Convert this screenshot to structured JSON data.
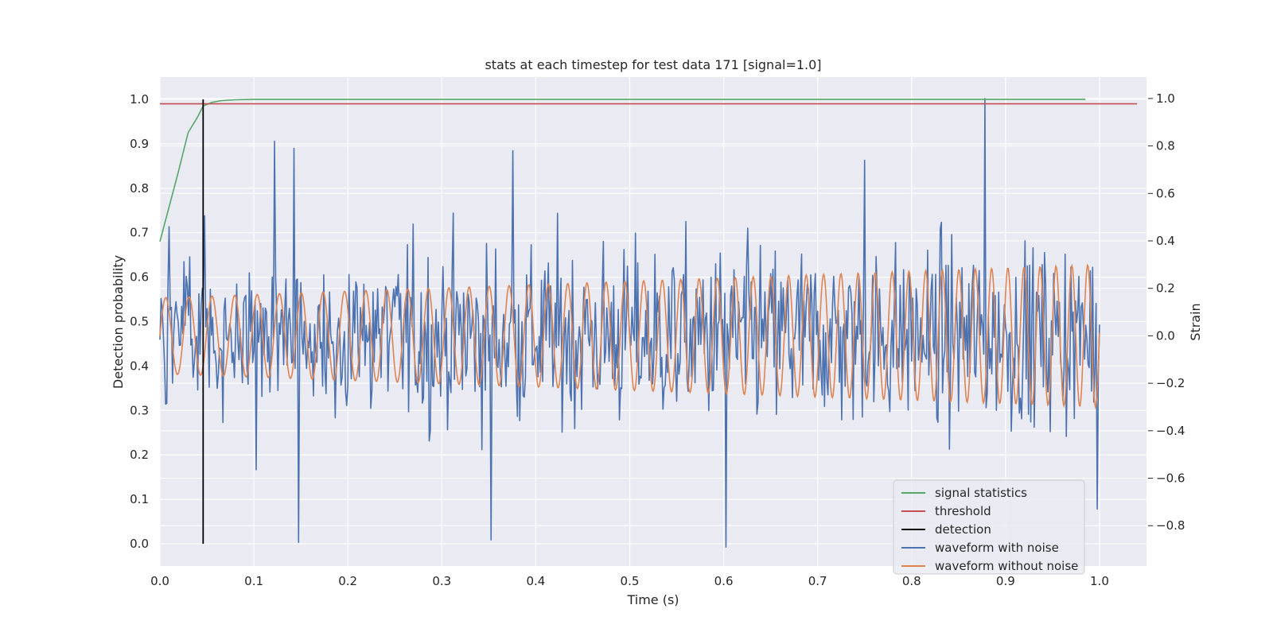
{
  "chart_data": {
    "type": "line",
    "title": "stats at each timestep for test data 171 [signal=1.0]",
    "xlabel": "Time (s)",
    "ylabel_left": "Detection probability",
    "ylabel_right": "Strain",
    "xlim": [
      0.0,
      1.05
    ],
    "ylim_left": [
      -0.05,
      1.05
    ],
    "ylim_right": [
      -0.97,
      1.09
    ],
    "x_ticks": [
      "0.0",
      "0.1",
      "0.2",
      "0.3",
      "0.4",
      "0.5",
      "0.6",
      "0.7",
      "0.8",
      "0.9",
      "1.0"
    ],
    "y_ticks_left": [
      "0.0",
      "0.1",
      "0.2",
      "0.3",
      "0.4",
      "0.5",
      "0.6",
      "0.7",
      "0.8",
      "0.9",
      "1.0"
    ],
    "y_ticks_right": [
      "−0.8",
      "−0.6",
      "−0.4",
      "−0.2",
      "0.0",
      "0.2",
      "0.4",
      "0.6",
      "0.8",
      "1.0"
    ],
    "grid": true,
    "legend_position": "lower-right",
    "series": [
      {
        "name": "signal statistics",
        "axis": "left",
        "color": "#55a868",
        "x": [
          0.0,
          0.01,
          0.02,
          0.03,
          0.04,
          0.046,
          0.055,
          0.065,
          0.08,
          0.1,
          0.2,
          0.3,
          0.4,
          0.5,
          0.6,
          0.7,
          0.8,
          0.9,
          0.985
        ],
        "y": [
          0.68,
          0.76,
          0.84,
          0.925,
          0.96,
          0.985,
          0.993,
          0.997,
          0.999,
          1.0,
          1.0,
          1.0,
          1.0,
          1.0,
          1.0,
          1.0,
          1.0,
          1.0,
          1.0
        ]
      },
      {
        "name": "threshold",
        "axis": "left",
        "color": "#c44e52",
        "x": [
          0.0,
          1.04
        ],
        "y": [
          0.99,
          0.99
        ]
      },
      {
        "name": "detection",
        "axis": "left",
        "color": "#000000",
        "x": [
          0.046,
          0.046
        ],
        "y": [
          0.0,
          1.0
        ]
      },
      {
        "name": "waveform with noise",
        "axis": "right",
        "color": "#4c72b0",
        "x_start": 0.0,
        "x_end": 1.0,
        "noise_sigma": 0.26,
        "notable_points": [
          {
            "x": 0.122,
            "y": 0.82
          },
          {
            "x": 0.143,
            "y": 0.79
          },
          {
            "x": 0.147,
            "y": -0.87
          },
          {
            "x": 0.353,
            "y": -0.86
          },
          {
            "x": 0.376,
            "y": 0.78
          },
          {
            "x": 0.603,
            "y": -0.89
          },
          {
            "x": 0.75,
            "y": 0.74
          },
          {
            "x": 0.878,
            "y": 1.0
          },
          {
            "x": 0.998,
            "y": -0.73
          }
        ]
      },
      {
        "name": "waveform without noise",
        "axis": "right",
        "color": "#dd8452",
        "x_start": 0.0,
        "x_end": 1.0,
        "amplitude_start": 0.16,
        "amplitude_end": 0.3,
        "frequency_start_hz": 40,
        "frequency_end_hz": 60
      }
    ]
  }
}
